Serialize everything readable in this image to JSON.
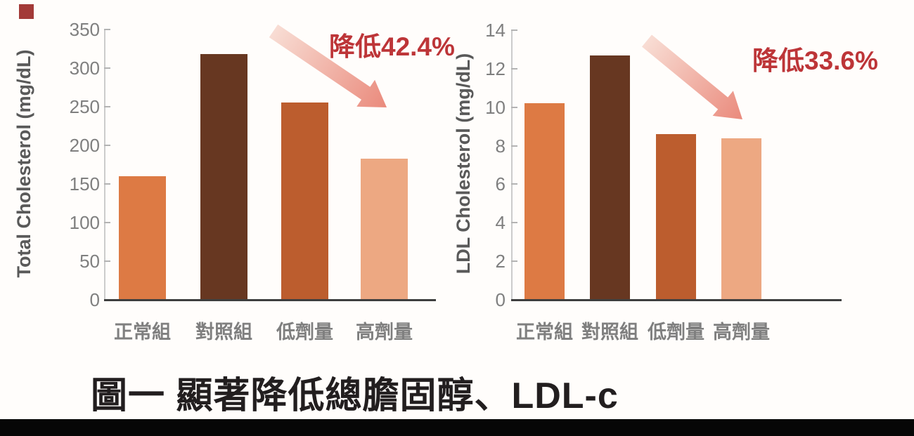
{
  "caption": "圖一 顯著降低總膽固醇、LDL-c",
  "colors": {
    "bar_normal": "#dd7a44",
    "bar_control": "#673721",
    "bar_low_dose": "#bc5d2e",
    "bar_high_dose": "#eda882",
    "annotation_red": "#bd3538",
    "arrow_gradient_start": "#f8ddd4",
    "arrow_gradient_end": "#ea8a7c",
    "axis_line": "#3e3e3e",
    "tick_label_gray": "#7f7f7f",
    "axis_title_gray": "#595959",
    "corner_marker_red": "#a33a38",
    "bottom_bar_black": "#060606"
  },
  "chart_data": [
    {
      "type": "bar",
      "title": "",
      "ylabel": "Total Cholesterol (mg/dL)",
      "xlabel": "",
      "categories": [
        "正常組",
        "對照組",
        "低劑量",
        "高劑量"
      ],
      "values": [
        160,
        318,
        255,
        183
      ],
      "ylim": [
        0,
        350
      ],
      "yticks": [
        "350",
        "300",
        "250",
        "200",
        "150",
        "100",
        "50",
        "0"
      ],
      "grid": false,
      "legend": "none",
      "annotation": "降低42.4%",
      "bar_colors": [
        "#dd7a44",
        "#673721",
        "#bc5d2e",
        "#eda882"
      ]
    },
    {
      "type": "bar",
      "title": "",
      "ylabel": "LDL Cholesterol (mg/dL)",
      "xlabel": "",
      "categories": [
        "正常組",
        "對照組",
        "低劑量",
        "高劑量"
      ],
      "values": [
        10.2,
        12.7,
        8.6,
        8.4
      ],
      "ylim": [
        0,
        14
      ],
      "yticks": [
        "14",
        "12",
        "10",
        "8",
        "6",
        "4",
        "2",
        "0"
      ],
      "grid": false,
      "legend": "none",
      "annotation": "降低33.6%",
      "bar_colors": [
        "#dd7a44",
        "#673721",
        "#bc5d2e",
        "#eda882"
      ]
    }
  ]
}
